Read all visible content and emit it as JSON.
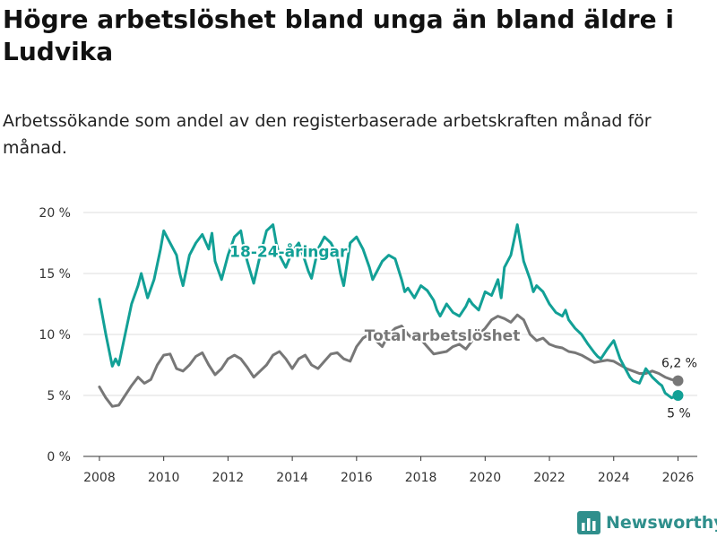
{
  "title": "Högre arbetslöshet bland unga än bland äldre i Ludvika",
  "subtitle": "Arbetssökande som andel av den registerbaserade arbetskraften månad för månad.",
  "brand": "Newsworthy",
  "colors": {
    "youth": "#12a096",
    "total": "#777777",
    "grid": "#dddddd",
    "brand": "#2f8f8c"
  },
  "chart_data": {
    "type": "line",
    "title": "Högre arbetslöshet bland unga än bland äldre i Ludvika",
    "xlabel": "",
    "ylabel": "",
    "xlim": [
      2007.5,
      2026.6
    ],
    "ylim": [
      0,
      20
    ],
    "x_ticks": [
      2008,
      2010,
      2012,
      2014,
      2016,
      2018,
      2020,
      2022,
      2024,
      2026
    ],
    "y_ticks": [
      0,
      5,
      10,
      15,
      20
    ],
    "y_tick_labels": [
      "0 %",
      "5 %",
      "10 %",
      "15 %",
      "20 %"
    ],
    "grid": true,
    "series": [
      {
        "name": "18-24-åringar",
        "label": "18-24-åringar",
        "end_label": "5 %",
        "x": [
          2008.0,
          2008.2,
          2008.4,
          2008.5,
          2008.6,
          2008.8,
          2009.0,
          2009.2,
          2009.3,
          2009.5,
          2009.7,
          2009.9,
          2010.0,
          2010.2,
          2010.4,
          2010.5,
          2010.6,
          2010.8,
          2011.0,
          2011.2,
          2011.4,
          2011.5,
          2011.6,
          2011.8,
          2012.0,
          2012.2,
          2012.4,
          2012.5,
          2012.6,
          2012.8,
          2013.0,
          2013.2,
          2013.4,
          2013.5,
          2013.6,
          2013.8,
          2014.0,
          2014.2,
          2014.4,
          2014.5,
          2014.6,
          2014.8,
          2015.0,
          2015.2,
          2015.4,
          2015.5,
          2015.6,
          2015.8,
          2016.0,
          2016.2,
          2016.4,
          2016.5,
          2016.6,
          2016.8,
          2017.0,
          2017.2,
          2017.4,
          2017.5,
          2017.6,
          2017.8,
          2018.0,
          2018.2,
          2018.4,
          2018.5,
          2018.6,
          2018.8,
          2019.0,
          2019.2,
          2019.4,
          2019.5,
          2019.6,
          2019.8,
          2020.0,
          2020.2,
          2020.4,
          2020.5,
          2020.6,
          2020.8,
          2021.0,
          2021.2,
          2021.4,
          2021.5,
          2021.6,
          2021.8,
          2022.0,
          2022.2,
          2022.4,
          2022.5,
          2022.6,
          2022.8,
          2023.0,
          2023.2,
          2023.4,
          2023.5,
          2023.6,
          2023.8,
          2024.0,
          2024.2,
          2024.4,
          2024.5,
          2024.6,
          2024.8,
          2025.0,
          2025.2,
          2025.4,
          2025.5,
          2025.6,
          2025.8,
          2026.0
        ],
        "values": [
          12.9,
          10.0,
          7.4,
          8.0,
          7.5,
          10.0,
          12.5,
          14.0,
          15.0,
          13.0,
          14.5,
          17.0,
          18.5,
          17.5,
          16.5,
          15.0,
          14.0,
          16.5,
          17.5,
          18.2,
          17.0,
          18.3,
          16.0,
          14.5,
          16.5,
          18.0,
          18.5,
          17.0,
          16.0,
          14.2,
          16.5,
          18.5,
          19.0,
          17.5,
          16.5,
          15.5,
          16.8,
          17.5,
          16.0,
          15.2,
          14.6,
          17.0,
          18.0,
          17.5,
          16.5,
          15.0,
          14.0,
          17.5,
          18.0,
          17.0,
          15.5,
          14.5,
          15.0,
          16.0,
          16.5,
          16.2,
          14.5,
          13.5,
          13.8,
          13.0,
          14.0,
          13.6,
          12.8,
          12.0,
          11.5,
          12.5,
          11.8,
          11.5,
          12.3,
          12.9,
          12.5,
          12.0,
          13.5,
          13.2,
          14.5,
          13.0,
          15.5,
          16.5,
          19.0,
          16.0,
          14.5,
          13.5,
          14.0,
          13.5,
          12.5,
          11.8,
          11.5,
          12.0,
          11.2,
          10.5,
          10.0,
          9.2,
          8.5,
          8.2,
          8.0,
          8.8,
          9.5,
          8.0,
          7.0,
          6.5,
          6.2,
          6.0,
          7.2,
          6.5,
          6.0,
          5.8,
          5.2,
          4.8,
          5.0
        ]
      },
      {
        "name": "Total arbetslöshet",
        "label": "Total arbetslöshet",
        "end_label": "6,2 %",
        "x": [
          2008.0,
          2008.2,
          2008.4,
          2008.6,
          2008.8,
          2009.0,
          2009.2,
          2009.4,
          2009.6,
          2009.8,
          2010.0,
          2010.2,
          2010.4,
          2010.6,
          2010.8,
          2011.0,
          2011.2,
          2011.4,
          2011.6,
          2011.8,
          2012.0,
          2012.2,
          2012.4,
          2012.6,
          2012.8,
          2013.0,
          2013.2,
          2013.4,
          2013.6,
          2013.8,
          2014.0,
          2014.2,
          2014.4,
          2014.6,
          2014.8,
          2015.0,
          2015.2,
          2015.4,
          2015.6,
          2015.8,
          2016.0,
          2016.2,
          2016.4,
          2016.6,
          2016.8,
          2017.0,
          2017.2,
          2017.4,
          2017.6,
          2017.8,
          2018.0,
          2018.2,
          2018.4,
          2018.6,
          2018.8,
          2019.0,
          2019.2,
          2019.4,
          2019.6,
          2019.8,
          2020.0,
          2020.2,
          2020.4,
          2020.6,
          2020.8,
          2021.0,
          2021.2,
          2021.4,
          2021.6,
          2021.8,
          2022.0,
          2022.2,
          2022.4,
          2022.6,
          2022.8,
          2023.0,
          2023.2,
          2023.4,
          2023.6,
          2023.8,
          2024.0,
          2024.2,
          2024.4,
          2024.6,
          2024.8,
          2025.0,
          2025.2,
          2025.4,
          2025.6,
          2025.8,
          2026.0
        ],
        "values": [
          5.7,
          4.8,
          4.1,
          4.2,
          5.0,
          5.8,
          6.5,
          6.0,
          6.3,
          7.5,
          8.3,
          8.4,
          7.2,
          7.0,
          7.5,
          8.2,
          8.5,
          7.5,
          6.7,
          7.2,
          8.0,
          8.3,
          8.0,
          7.3,
          6.5,
          7.0,
          7.5,
          8.3,
          8.6,
          8.0,
          7.2,
          8.0,
          8.3,
          7.5,
          7.2,
          7.8,
          8.4,
          8.5,
          8.0,
          7.8,
          9.0,
          9.7,
          10.0,
          9.5,
          9.0,
          10.0,
          10.5,
          10.7,
          10.0,
          9.5,
          9.6,
          9.0,
          8.4,
          8.5,
          8.6,
          9.0,
          9.2,
          8.8,
          9.5,
          10.0,
          10.5,
          11.2,
          11.5,
          11.3,
          11.0,
          11.6,
          11.2,
          10.0,
          9.5,
          9.7,
          9.2,
          9.0,
          8.9,
          8.6,
          8.5,
          8.3,
          8.0,
          7.7,
          7.8,
          7.9,
          7.8,
          7.5,
          7.2,
          7.0,
          6.8,
          6.8,
          7.0,
          6.8,
          6.5,
          6.3,
          6.2
        ]
      }
    ]
  }
}
